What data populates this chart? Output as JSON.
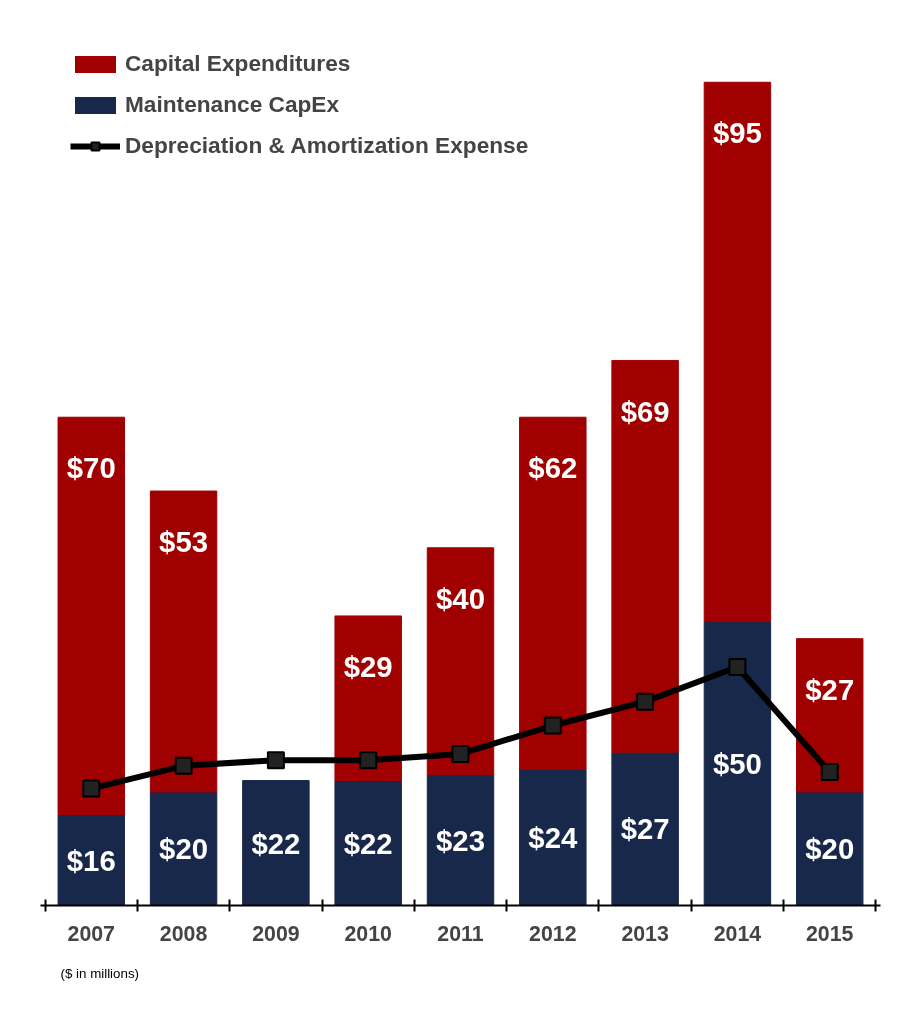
{
  "chart_data": {
    "type": "bar",
    "stacked": true,
    "categories": [
      "2007",
      "2008",
      "2009",
      "2010",
      "2011",
      "2012",
      "2013",
      "2014",
      "2015"
    ],
    "series": [
      {
        "name": "Maintenance CapEx",
        "color": "#18284a",
        "values": [
          16,
          20,
          22,
          22,
          23,
          24,
          27,
          50,
          20
        ],
        "value_labels": [
          "$16",
          "$20",
          "$22",
          "$22",
          "$23",
          "$24",
          "$27",
          "$50",
          "$20"
        ]
      },
      {
        "name": "Capital Expenditures",
        "color": "#a00000",
        "values": [
          70,
          53,
          null,
          29,
          40,
          62,
          69,
          95,
          27
        ],
        "value_labels": [
          "$70",
          "$53",
          null,
          "$29",
          "$40",
          "$62",
          "$69",
          "$95",
          "$27"
        ]
      },
      {
        "name": "Depreciation & Amortization Expense",
        "type": "line",
        "color": "#000000",
        "values": [
          20.6,
          24.6,
          25.6,
          25.6,
          26.7,
          31.7,
          35.9,
          42,
          23.5
        ]
      }
    ],
    "tick_labels": "x",
    "legend": "top left",
    "marker": "square",
    "grid": false,
    "annotations": [
      "($ in millions)"
    ]
  }
}
